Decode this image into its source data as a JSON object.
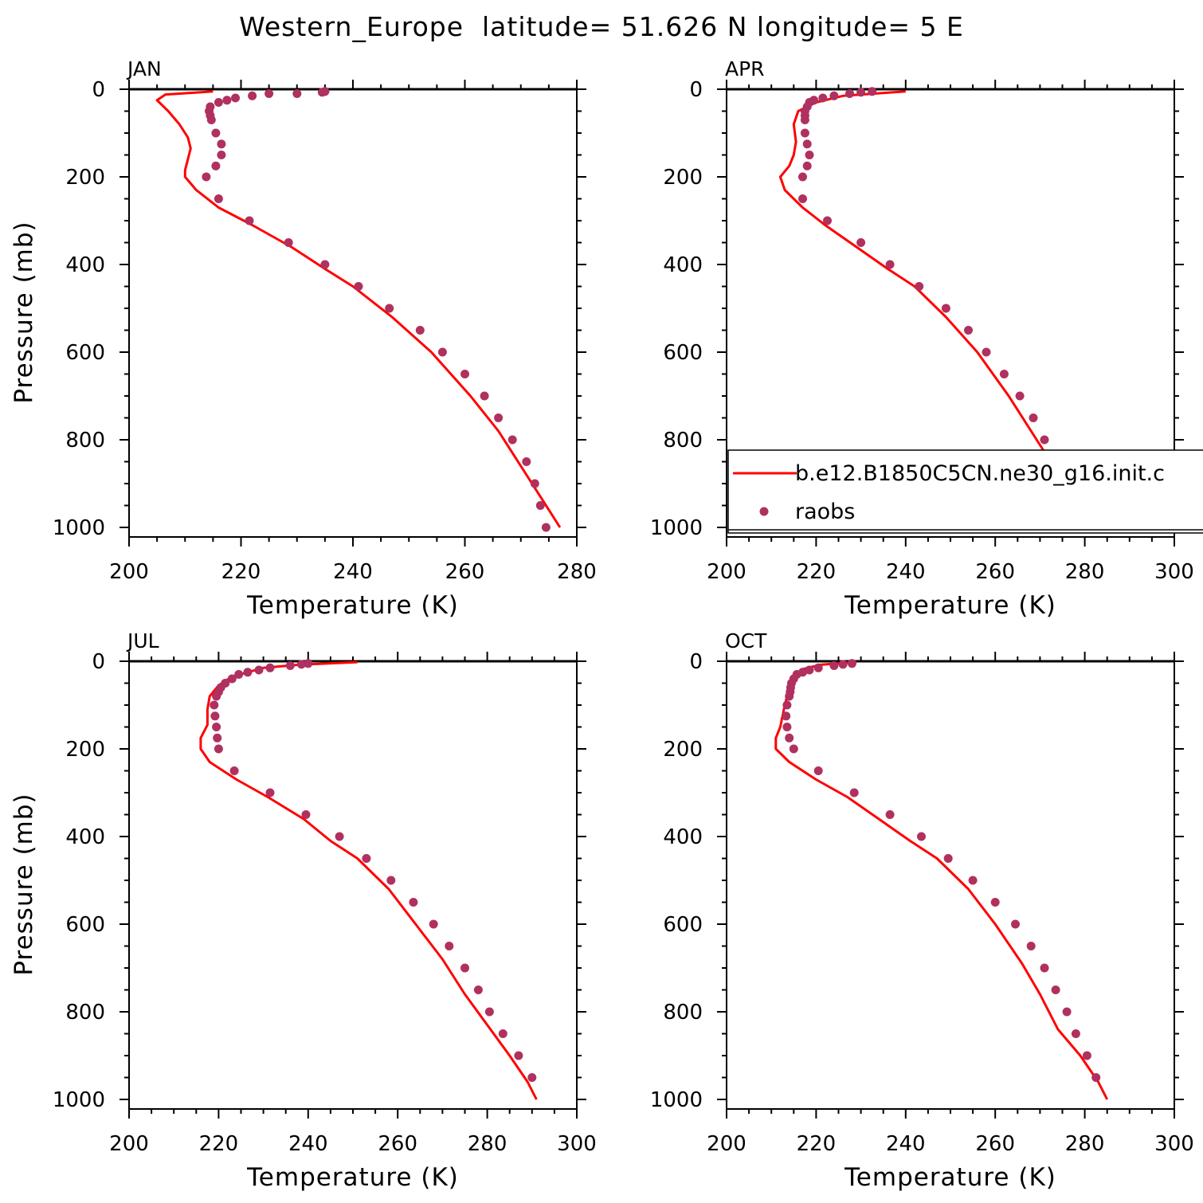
{
  "figure": {
    "title": "Western_Europe  latitude= 51.626 N longitude= 5 E"
  },
  "colors": {
    "model_line": "#ff0000",
    "obs_marker": "#b03060",
    "axis": "#000000",
    "background": "#ffffff"
  },
  "legend": {
    "panel": "APR",
    "items": [
      {
        "label": "b.e12.B1850C5CN.ne30_g16.init.c",
        "kind": "line",
        "color": "#ff0000"
      },
      {
        "label": "raobs",
        "kind": "marker",
        "color": "#b03060"
      }
    ]
  },
  "chart_data": [
    {
      "type": "line",
      "panel_label": "JAN",
      "xlabel": "Temperature (K)",
      "ylabel": "Pressure (mb)",
      "xlim": [
        200,
        280
      ],
      "ylim": [
        1000,
        0
      ],
      "y_inverted": true,
      "xticks": [
        200,
        220,
        240,
        260,
        280
      ],
      "yticks": [
        0,
        200,
        400,
        600,
        800,
        1000
      ],
      "series": [
        {
          "name": "b.e12.B1850C5CN.ne30_g16.init.c",
          "style": "line",
          "points": [
            [
              215,
              5
            ],
            [
              206.5,
              12
            ],
            [
              205,
              25
            ],
            [
              207,
              50
            ],
            [
              209,
              80
            ],
            [
              210.5,
              110
            ],
            [
              211,
              135
            ],
            [
              210.5,
              160
            ],
            [
              210,
              185
            ],
            [
              210,
              200
            ],
            [
              212,
              230
            ],
            [
              216,
              270
            ],
            [
              222,
              310
            ],
            [
              229,
              360
            ],
            [
              235,
              410
            ],
            [
              240,
              450
            ],
            [
              247,
              520
            ],
            [
              254,
              600
            ],
            [
              261,
              700
            ],
            [
              266,
              780
            ],
            [
              271,
              880
            ],
            [
              275,
              960
            ],
            [
              277,
              1000
            ]
          ]
        },
        {
          "name": "raobs",
          "style": "marker",
          "points": [
            [
              235,
              5
            ],
            [
              234.5,
              7
            ],
            [
              230,
              10
            ],
            [
              225,
              10
            ],
            [
              222,
              15
            ],
            [
              219,
              20
            ],
            [
              217.5,
              25
            ],
            [
              216,
              30
            ],
            [
              214.5,
              40
            ],
            [
              214.3,
              50
            ],
            [
              214.5,
              60
            ],
            [
              214.7,
              70
            ],
            [
              215.5,
              100
            ],
            [
              216.5,
              125
            ],
            [
              216.5,
              150
            ],
            [
              215.5,
              175
            ],
            [
              213.8,
              200
            ],
            [
              216,
              250
            ],
            [
              221.5,
              300
            ],
            [
              228.5,
              350
            ],
            [
              235,
              400
            ],
            [
              241,
              450
            ],
            [
              246.5,
              500
            ],
            [
              252,
              550
            ],
            [
              256,
              600
            ],
            [
              260,
              650
            ],
            [
              263.5,
              700
            ],
            [
              266,
              750
            ],
            [
              268.5,
              800
            ],
            [
              271,
              850
            ],
            [
              272.5,
              900
            ],
            [
              273.5,
              950
            ],
            [
              274.5,
              1000
            ]
          ]
        }
      ]
    },
    {
      "type": "line",
      "panel_label": "APR",
      "xlabel": "Temperature (K)",
      "ylabel": "",
      "xlim": [
        200,
        300
      ],
      "ylim": [
        1000,
        0
      ],
      "y_inverted": true,
      "xticks": [
        200,
        220,
        240,
        260,
        280,
        300
      ],
      "yticks": [
        0,
        200,
        400,
        600,
        800,
        1000
      ],
      "series": [
        {
          "name": "b.e12.B1850C5CN.ne30_g16.init.c",
          "style": "line",
          "points": [
            [
              240,
              5
            ],
            [
              226,
              15
            ],
            [
              220,
              30
            ],
            [
              216,
              50
            ],
            [
              215,
              80
            ],
            [
              215.5,
              120
            ],
            [
              215,
              150
            ],
            [
              214,
              175
            ],
            [
              212,
              200
            ],
            [
              213,
              230
            ],
            [
              217,
              270
            ],
            [
              222,
              310
            ],
            [
              229,
              360
            ],
            [
              236,
              410
            ],
            [
              242,
              450
            ],
            [
              249,
              520
            ],
            [
              256,
              600
            ],
            [
              263,
              700
            ],
            [
              268,
              780
            ],
            [
              273,
              860
            ],
            [
              278,
              920
            ],
            [
              281,
              960
            ],
            [
              282,
              1000
            ]
          ]
        },
        {
          "name": "raobs",
          "style": "marker",
          "points": [
            [
              232.5,
              5
            ],
            [
              230,
              7
            ],
            [
              227.5,
              10
            ],
            [
              224,
              15
            ],
            [
              221.5,
              20
            ],
            [
              219.5,
              25
            ],
            [
              218.5,
              30
            ],
            [
              218,
              40
            ],
            [
              217.5,
              50
            ],
            [
              217.5,
              60
            ],
            [
              217.5,
              70
            ],
            [
              217.5,
              100
            ],
            [
              218,
              125
            ],
            [
              218.5,
              150
            ],
            [
              218,
              175
            ],
            [
              217,
              200
            ],
            [
              217,
              250
            ],
            [
              222.5,
              300
            ],
            [
              230,
              350
            ],
            [
              236.5,
              400
            ],
            [
              243,
              450
            ],
            [
              249,
              500
            ],
            [
              254,
              550
            ],
            [
              258,
              600
            ],
            [
              262,
              650
            ],
            [
              265.5,
              700
            ],
            [
              268.5,
              750
            ],
            [
              271,
              800
            ],
            [
              273.5,
              850
            ],
            [
              276.5,
              900
            ],
            [
              280.5,
              950
            ]
          ]
        }
      ]
    },
    {
      "type": "line",
      "panel_label": "JUL",
      "xlabel": "Temperature (K)",
      "ylabel": "Pressure (mb)",
      "xlim": [
        200,
        300
      ],
      "ylim": [
        1000,
        0
      ],
      "y_inverted": true,
      "xticks": [
        200,
        220,
        240,
        260,
        280,
        300
      ],
      "yticks": [
        0,
        200,
        400,
        600,
        800,
        1000
      ],
      "series": [
        {
          "name": "b.e12.B1850C5CN.ne30_g16.init.c",
          "style": "line",
          "points": [
            [
              251,
              2
            ],
            [
              238,
              8
            ],
            [
              230,
              15
            ],
            [
              223,
              35
            ],
            [
              220,
              55
            ],
            [
              218,
              80
            ],
            [
              217.5,
              110
            ],
            [
              217.5,
              145
            ],
            [
              216,
              175
            ],
            [
              216,
              200
            ],
            [
              218,
              230
            ],
            [
              224,
              270
            ],
            [
              231,
              310
            ],
            [
              239,
              360
            ],
            [
              245,
              410
            ],
            [
              251,
              450
            ],
            [
              258,
              520
            ],
            [
              264,
              600
            ],
            [
              270,
              680
            ],
            [
              275,
              760
            ],
            [
              280,
              830
            ],
            [
              285,
              900
            ],
            [
              289,
              960
            ],
            [
              291,
              1000
            ]
          ]
        },
        {
          "name": "raobs",
          "style": "marker",
          "points": [
            [
              240,
              5
            ],
            [
              238.5,
              7
            ],
            [
              236,
              10
            ],
            [
              231.5,
              15
            ],
            [
              229,
              20
            ],
            [
              226.5,
              25
            ],
            [
              224.5,
              30
            ],
            [
              223,
              40
            ],
            [
              221.5,
              50
            ],
            [
              220.5,
              60
            ],
            [
              220,
              70
            ],
            [
              219.5,
              80
            ],
            [
              219,
              100
            ],
            [
              219.2,
              125
            ],
            [
              219.5,
              150
            ],
            [
              219.7,
              175
            ],
            [
              220,
              200
            ],
            [
              223.5,
              250
            ],
            [
              231.5,
              300
            ],
            [
              239.5,
              350
            ],
            [
              247,
              400
            ],
            [
              253,
              450
            ],
            [
              258.5,
              500
            ],
            [
              263.5,
              550
            ],
            [
              268,
              600
            ],
            [
              271.5,
              650
            ],
            [
              275,
              700
            ],
            [
              278,
              750
            ],
            [
              280.5,
              800
            ],
            [
              283.5,
              850
            ],
            [
              287,
              900
            ],
            [
              290,
              950
            ]
          ]
        }
      ]
    },
    {
      "type": "line",
      "panel_label": "OCT",
      "xlabel": "Temperature (K)",
      "ylabel": "",
      "xlim": [
        200,
        300
      ],
      "ylim": [
        1000,
        0
      ],
      "y_inverted": true,
      "xticks": [
        200,
        220,
        240,
        260,
        280,
        300
      ],
      "yticks": [
        0,
        200,
        400,
        600,
        800,
        1000
      ],
      "series": [
        {
          "name": "b.e12.B1850C5CN.ne30_g16.init.c",
          "style": "line",
          "points": [
            [
              229,
              2
            ],
            [
              221,
              8
            ],
            [
              217,
              18
            ],
            [
              215,
              35
            ],
            [
              214,
              60
            ],
            [
              213,
              100
            ],
            [
              212,
              150
            ],
            [
              211,
              175
            ],
            [
              211,
              200
            ],
            [
              214,
              230
            ],
            [
              220,
              270
            ],
            [
              227,
              310
            ],
            [
              234,
              360
            ],
            [
              241,
              410
            ],
            [
              247,
              450
            ],
            [
              254,
              520
            ],
            [
              260,
              600
            ],
            [
              266,
              690
            ],
            [
              270,
              760
            ],
            [
              274,
              840
            ],
            [
              279,
              900
            ],
            [
              283,
              960
            ],
            [
              285,
              1000
            ]
          ]
        },
        {
          "name": "raobs",
          "style": "marker",
          "points": [
            [
              228,
              5
            ],
            [
              226,
              7
            ],
            [
              224,
              10
            ],
            [
              220.5,
              15
            ],
            [
              218.5,
              20
            ],
            [
              217,
              25
            ],
            [
              215.7,
              30
            ],
            [
              215,
              40
            ],
            [
              214.5,
              50
            ],
            [
              214.3,
              60
            ],
            [
              214.2,
              70
            ],
            [
              214,
              80
            ],
            [
              213.5,
              100
            ],
            [
              213.3,
              125
            ],
            [
              213.5,
              150
            ],
            [
              214,
              175
            ],
            [
              215,
              200
            ],
            [
              220.5,
              250
            ],
            [
              228.5,
              300
            ],
            [
              236.5,
              350
            ],
            [
              243.5,
              400
            ],
            [
              249.5,
              450
            ],
            [
              255,
              500
            ],
            [
              260,
              550
            ],
            [
              264.5,
              600
            ],
            [
              268,
              650
            ],
            [
              271,
              700
            ],
            [
              273.5,
              750
            ],
            [
              276,
              800
            ],
            [
              278,
              850
            ],
            [
              280.5,
              900
            ],
            [
              282.5,
              950
            ]
          ]
        }
      ]
    }
  ]
}
